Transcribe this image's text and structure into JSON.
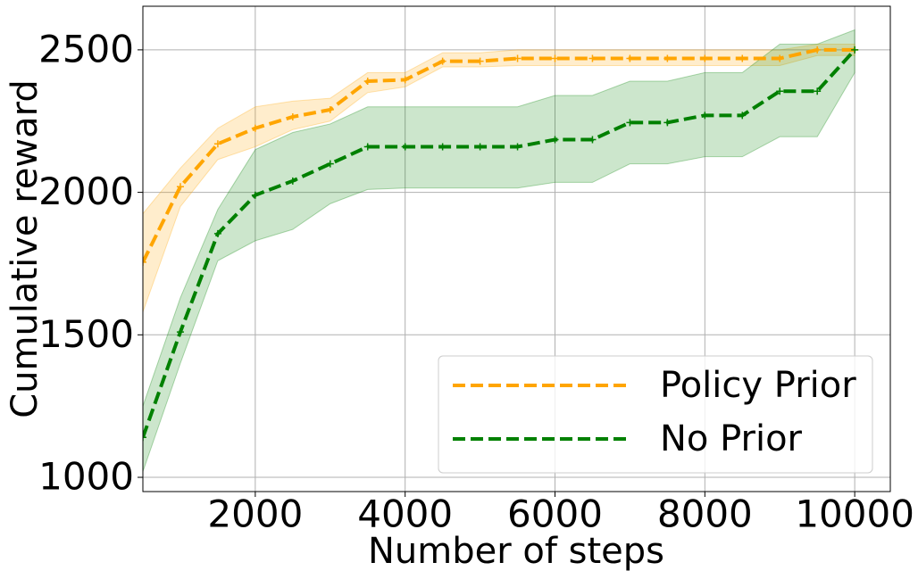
{
  "chart_data": {
    "type": "line",
    "xlabel": "Number of steps",
    "ylabel": "Cumulative reward",
    "x": [
      500,
      1000,
      1500,
      2000,
      2500,
      3000,
      3500,
      4000,
      4500,
      5000,
      5500,
      6000,
      6500,
      7000,
      7500,
      8000,
      8500,
      9000,
      9500,
      10000
    ],
    "xlim": [
      500,
      10475
    ],
    "ylim": [
      950,
      2653
    ],
    "xticks": [
      2000,
      4000,
      6000,
      8000,
      10000
    ],
    "yticks": [
      1000,
      1500,
      2000,
      2500
    ],
    "grid": true,
    "legend": "lower right",
    "series": [
      {
        "name": "Policy Prior",
        "color": "#ffa500",
        "values": [
          1755,
          2020,
          2170,
          2225,
          2265,
          2290,
          2390,
          2395,
          2460,
          2460,
          2470,
          2470,
          2470,
          2470,
          2470,
          2470,
          2470,
          2470,
          2500,
          2500
        ],
        "band_upper": [
          1925,
          2085,
          2225,
          2300,
          2320,
          2330,
          2420,
          2420,
          2490,
          2490,
          2500,
          2500,
          2500,
          2500,
          2500,
          2500,
          2500,
          2500,
          2520,
          2520
        ],
        "band_lower": [
          1580,
          1950,
          2115,
          2160,
          2220,
          2250,
          2350,
          2370,
          2440,
          2440,
          2445,
          2445,
          2445,
          2445,
          2445,
          2445,
          2445,
          2445,
          2480,
          2480
        ]
      },
      {
        "name": "No Prior",
        "color": "#008000",
        "values": [
          1140,
          1510,
          1855,
          1990,
          2040,
          2100,
          2160,
          2160,
          2160,
          2160,
          2160,
          2185,
          2185,
          2245,
          2245,
          2270,
          2270,
          2355,
          2355,
          2500
        ],
        "band_upper": [
          1250,
          1630,
          1940,
          2150,
          2210,
          2240,
          2300,
          2300,
          2300,
          2300,
          2300,
          2340,
          2340,
          2390,
          2390,
          2420,
          2420,
          2520,
          2520,
          2570
        ],
        "band_lower": [
          1020,
          1400,
          1760,
          1830,
          1870,
          1960,
          2010,
          2015,
          2015,
          2015,
          2015,
          2035,
          2035,
          2100,
          2100,
          2125,
          2125,
          2195,
          2195,
          2420
        ]
      }
    ]
  }
}
